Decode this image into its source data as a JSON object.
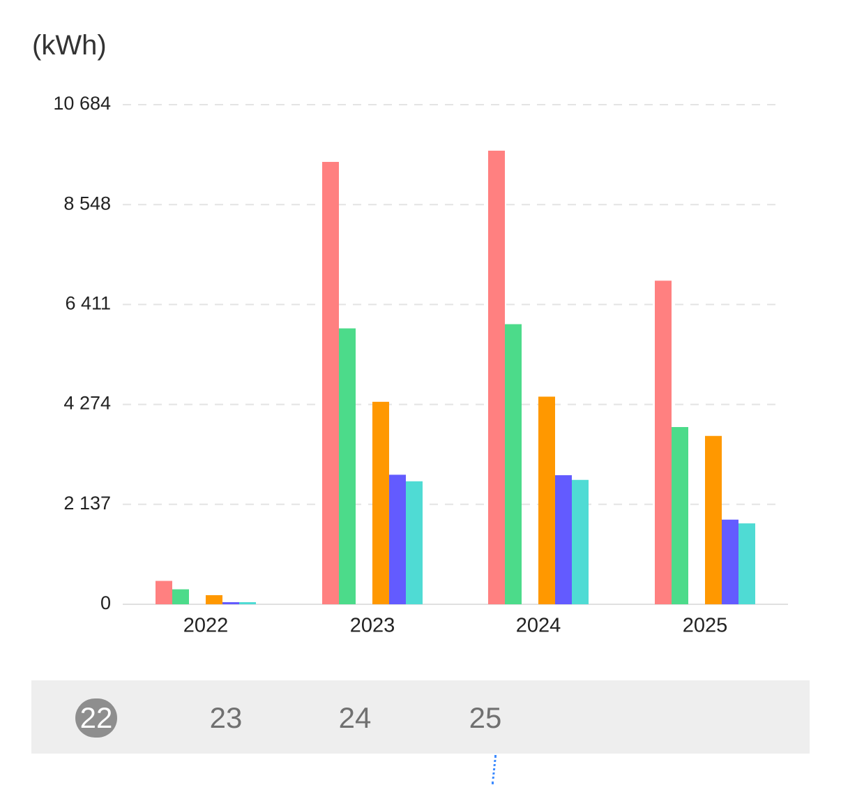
{
  "chart_data": {
    "type": "bar",
    "unit_label": "(kWh)",
    "categories": [
      "2022",
      "2023",
      "2024",
      "2025"
    ],
    "y_ticks": [
      "10 684",
      "8 548",
      "6 411",
      "4 274",
      "2 137",
      "0"
    ],
    "ylim": [
      0,
      10684
    ],
    "grid": true,
    "series": [
      {
        "color": "#ff8080",
        "values": [
          500,
          9460,
          9700,
          6920
        ]
      },
      {
        "color": "#4cdb8a",
        "values": [
          320,
          5900,
          5990,
          3790
        ]
      },
      {
        "color": "#ff9800",
        "values": [
          195,
          4330,
          4440,
          3600
        ]
      },
      {
        "color": "#635bff",
        "values": [
          45,
          2770,
          2760,
          1810
        ]
      },
      {
        "color": "#4fdbd4",
        "values": [
          45,
          2630,
          2660,
          1730
        ]
      }
    ]
  },
  "year_selector": {
    "items": [
      "22",
      "23",
      "24",
      "25"
    ],
    "selected_index": 0
  }
}
